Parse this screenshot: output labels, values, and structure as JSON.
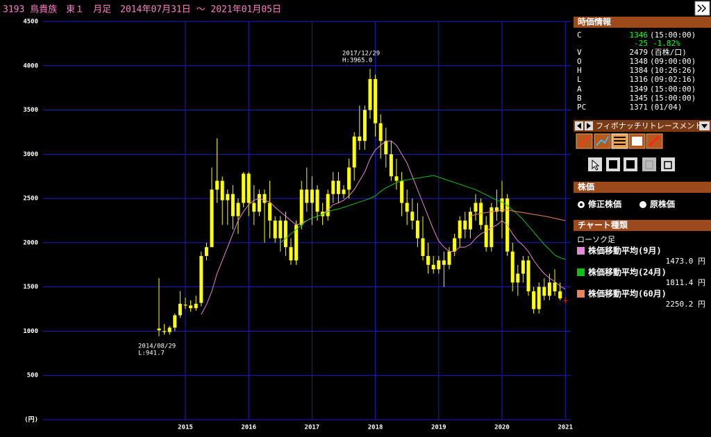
{
  "chart_data": {
    "type": "candlestick",
    "title": "3193 鳥貴族　東１　月足　2014年07月31日 ～ 2021年01月05日",
    "categories": [
      null,
      null,
      null,
      null,
      null,
      "2015",
      null,
      null,
      null,
      null,
      null,
      null,
      null,
      null,
      null,
      null,
      null,
      "2016",
      null,
      null,
      null,
      null,
      null,
      null,
      null,
      null,
      null,
      null,
      null,
      "2017",
      null,
      null,
      null,
      null,
      null,
      null,
      null,
      null,
      null,
      null,
      null,
      "2018",
      null,
      null,
      null,
      null,
      null,
      null,
      null,
      null,
      null,
      null,
      null,
      "2019",
      null,
      null,
      null,
      null,
      null,
      null,
      null,
      null,
      null,
      null,
      null,
      "2020",
      null,
      null,
      null,
      null,
      null,
      null,
      null,
      null,
      null,
      null,
      null,
      "2021"
    ],
    "open": [
      1030,
      1000,
      990,
      1040,
      1180,
      1300,
      1290,
      1260,
      1320,
      1850,
      1950,
      2600,
      2700,
      2480,
      2550,
      2300,
      2450,
      2780,
      2450,
      2350,
      2550,
      2450,
      2250,
      2050,
      2250,
      1950,
      1800,
      2200,
      2600,
      2450,
      2600,
      2350,
      2300,
      2550,
      2700,
      2550,
      2600,
      2850,
      3200,
      3150,
      3500,
      3850,
      3350,
      3150,
      3000,
      2750,
      2700,
      2450,
      2350,
      2250,
      2050,
      1850,
      1750,
      1700,
      1800,
      1750,
      1900,
      2050,
      2250,
      2150,
      2350,
      2450,
      2200,
      1950,
      2400,
      2350,
      2500,
      1900,
      1550,
      1650,
      1800,
      1450,
      1250,
      1500,
      1400,
      1550,
      1450,
      1348
    ],
    "high": [
      1600,
      1080,
      1060,
      1200,
      1450,
      1380,
      1350,
      1400,
      1900,
      2000,
      2850,
      3180,
      2750,
      2600,
      2650,
      2500,
      2800,
      2800,
      2650,
      2600,
      2600,
      2700,
      2300,
      2300,
      2350,
      2050,
      2250,
      2700,
      2850,
      2750,
      2650,
      2450,
      2600,
      2800,
      2800,
      2650,
      2950,
      3250,
      3550,
      3550,
      3965,
      3900,
      3450,
      3300,
      3150,
      2950,
      2800,
      2600,
      2500,
      2450,
      2300,
      2000,
      1850,
      1850,
      1900,
      1950,
      2100,
      2300,
      2350,
      2400,
      2550,
      2500,
      2300,
      2450,
      2600,
      2700,
      2550,
      2000,
      1750,
      1850,
      1850,
      1500,
      1550,
      1600,
      1650,
      1700,
      1550,
      1384
    ],
    "low": [
      941.7,
      960,
      960,
      1000,
      1150,
      1250,
      1220,
      1230,
      1280,
      1800,
      1950,
      2450,
      2200,
      2200,
      2150,
      2100,
      2400,
      2300,
      2200,
      2300,
      2000,
      2050,
      2000,
      1900,
      1850,
      1750,
      1750,
      2150,
      2350,
      2200,
      2250,
      2200,
      2250,
      2450,
      2450,
      2500,
      2500,
      2700,
      3050,
      3050,
      3400,
      3200,
      2950,
      2850,
      2700,
      2600,
      2300,
      2200,
      2150,
      1950,
      1800,
      1650,
      1650,
      1650,
      1500,
      1700,
      1850,
      1950,
      2050,
      2050,
      2250,
      2150,
      1900,
      1900,
      2250,
      2050,
      1850,
      1450,
      1400,
      1550,
      1400,
      1200,
      1200,
      1350,
      1350,
      1400,
      1350,
      1316
    ],
    "close": [
      1010,
      990,
      1040,
      1180,
      1310,
      1290,
      1260,
      1310,
      1850,
      1950,
      2600,
      2700,
      2480,
      2550,
      2300,
      2450,
      2780,
      2450,
      2350,
      2550,
      2450,
      2250,
      2050,
      2250,
      1950,
      1800,
      2200,
      2600,
      2450,
      2600,
      2350,
      2300,
      2550,
      2700,
      2550,
      2600,
      2850,
      3200,
      3150,
      3500,
      3850,
      3350,
      3150,
      3000,
      2750,
      2700,
      2450,
      2350,
      2250,
      2050,
      1850,
      1750,
      1700,
      1800,
      1750,
      1900,
      2050,
      2250,
      2150,
      2350,
      2450,
      2200,
      1950,
      2400,
      2350,
      2500,
      1900,
      1550,
      1650,
      1800,
      1450,
      1250,
      1500,
      1400,
      1550,
      1450,
      1371,
      1346
    ],
    "candle_color": "#ffff00",
    "current_color": "#ff2020",
    "series": [
      {
        "name": "株価移動平均(9月)",
        "color": "#e48ad6",
        "last_label": "1473.0 円",
        "values": [
          null,
          null,
          null,
          null,
          null,
          null,
          null,
          null,
          1190,
          1300,
          1450,
          1650,
          1800,
          1950,
          2100,
          2250,
          2350,
          2430,
          2480,
          2500,
          2480,
          2460,
          2400,
          2350,
          2300,
          2250,
          2200,
          2220,
          2250,
          2280,
          2300,
          2320,
          2370,
          2430,
          2450,
          2480,
          2530,
          2600,
          2700,
          2800,
          2950,
          3050,
          3100,
          3150,
          3150,
          3100,
          3000,
          2900,
          2750,
          2600,
          2450,
          2300,
          2150,
          2020,
          1950,
          1900,
          1900,
          1950,
          1950,
          1980,
          2050,
          2100,
          2130,
          2170,
          2200,
          2250,
          2200,
          2100,
          2020,
          1970,
          1900,
          1800,
          1720,
          1650,
          1600,
          1560,
          1510,
          1473.0
        ]
      },
      {
        "name": "株価移動平均(24月)",
        "color": "#10c010",
        "last_label": "1811.4 円",
        "values": [
          null,
          null,
          null,
          null,
          null,
          null,
          null,
          null,
          null,
          null,
          null,
          null,
          null,
          null,
          null,
          null,
          null,
          null,
          null,
          null,
          null,
          null,
          null,
          2000,
          2050,
          2100,
          2150,
          2200,
          2250,
          2280,
          2300,
          2320,
          2350,
          2370,
          2380,
          2400,
          2420,
          2440,
          2460,
          2480,
          2500,
          2530,
          2580,
          2620,
          2650,
          2680,
          2700,
          2710,
          2720,
          2730,
          2740,
          2750,
          2760,
          2740,
          2720,
          2700,
          2680,
          2660,
          2640,
          2620,
          2600,
          2570,
          2540,
          2510,
          2480,
          2460,
          2420,
          2370,
          2320,
          2260,
          2190,
          2120,
          2050,
          1980,
          1920,
          1860,
          1830,
          1811.4
        ]
      },
      {
        "name": "株価移動平均(60月)",
        "color": "#e8845a",
        "last_label": "2250.2 円",
        "values": [
          null,
          null,
          null,
          null,
          null,
          null,
          null,
          null,
          null,
          null,
          null,
          null,
          null,
          null,
          null,
          null,
          null,
          null,
          null,
          null,
          null,
          null,
          null,
          null,
          null,
          null,
          null,
          null,
          null,
          null,
          null,
          null,
          null,
          null,
          null,
          null,
          null,
          null,
          null,
          null,
          null,
          null,
          null,
          null,
          null,
          null,
          null,
          null,
          null,
          null,
          null,
          null,
          null,
          null,
          null,
          null,
          null,
          null,
          null,
          2300,
          2320,
          2330,
          2340,
          2350,
          2360,
          2370,
          2370,
          2360,
          2350,
          2340,
          2330,
          2320,
          2310,
          2300,
          2290,
          2275,
          2262,
          2250.2
        ]
      }
    ],
    "ylim": [
      0,
      4500
    ],
    "yticks": [
      {
        "value": 0,
        "label": "(円)"
      },
      500,
      1000,
      1500,
      2000,
      2500,
      3000,
      3500,
      4000,
      4500
    ],
    "grid": true,
    "grid_color": "#1c1cc8",
    "annotations": {
      "high": [
        "2017/12/29",
        "H:3965.0"
      ],
      "low": [
        "2014/08/29",
        "L:941.7"
      ]
    }
  },
  "panel": {
    "quote_title": "時価情報",
    "labels": [
      "C",
      "V",
      "O",
      "H",
      "L",
      "A",
      "B",
      "PC"
    ],
    "c_time": "(15:00:00)",
    "change": "-25",
    "change_pct": "-1.82%",
    "volume": "2479",
    "volume_unit": "(百株/口)",
    "o_time": "(09:00:00)",
    "h_time": "(10:26:26)",
    "l_time": "(09:02:16)",
    "a_value": "1349",
    "a_time": "(15:00:00)",
    "b_value": "1345",
    "b_time": "(15:00:00)",
    "pc_value": "1371",
    "pc_date": "(01/04)",
    "tool_title": "フィボナッチリトレースメント",
    "price_title": "株価",
    "price_options": [
      "修正株価",
      "原株価"
    ],
    "chart_kind_title": "チャート種類",
    "chart_kind": "ローソク足"
  }
}
